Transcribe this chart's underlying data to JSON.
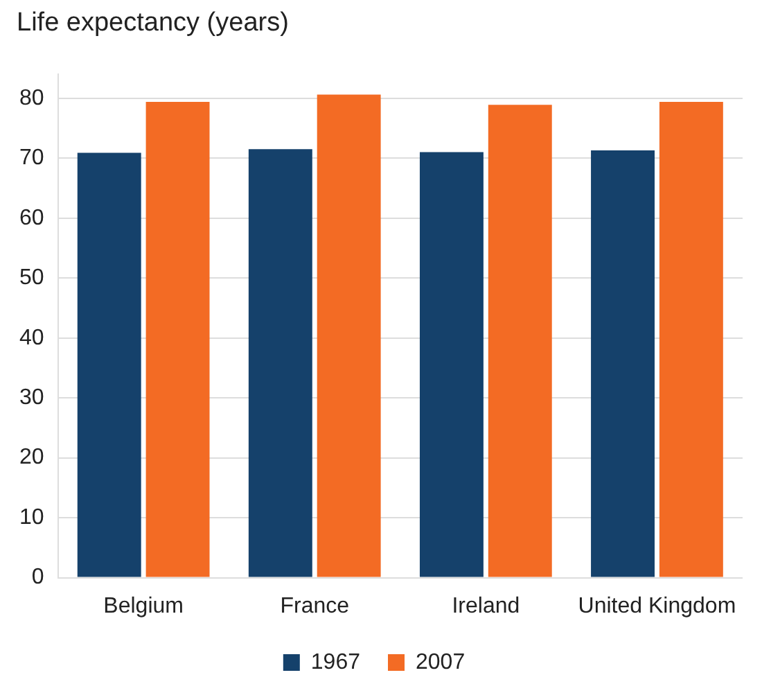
{
  "chart_data": {
    "type": "bar",
    "title": "Life expectancy (years)",
    "categories": [
      "Belgium",
      "France",
      "Ireland",
      "United Kingdom"
    ],
    "series": [
      {
        "name": "1967",
        "color": "#15416b",
        "values": [
          70.9,
          71.5,
          71.0,
          71.3
        ]
      },
      {
        "name": "2007",
        "color": "#f36b24",
        "values": [
          79.4,
          80.6,
          78.9,
          79.4
        ]
      }
    ],
    "ylim": [
      0,
      84
    ],
    "yticks": [
      0,
      10,
      20,
      30,
      40,
      50,
      60,
      70,
      80
    ],
    "grid": "y",
    "legend": "bottom"
  }
}
